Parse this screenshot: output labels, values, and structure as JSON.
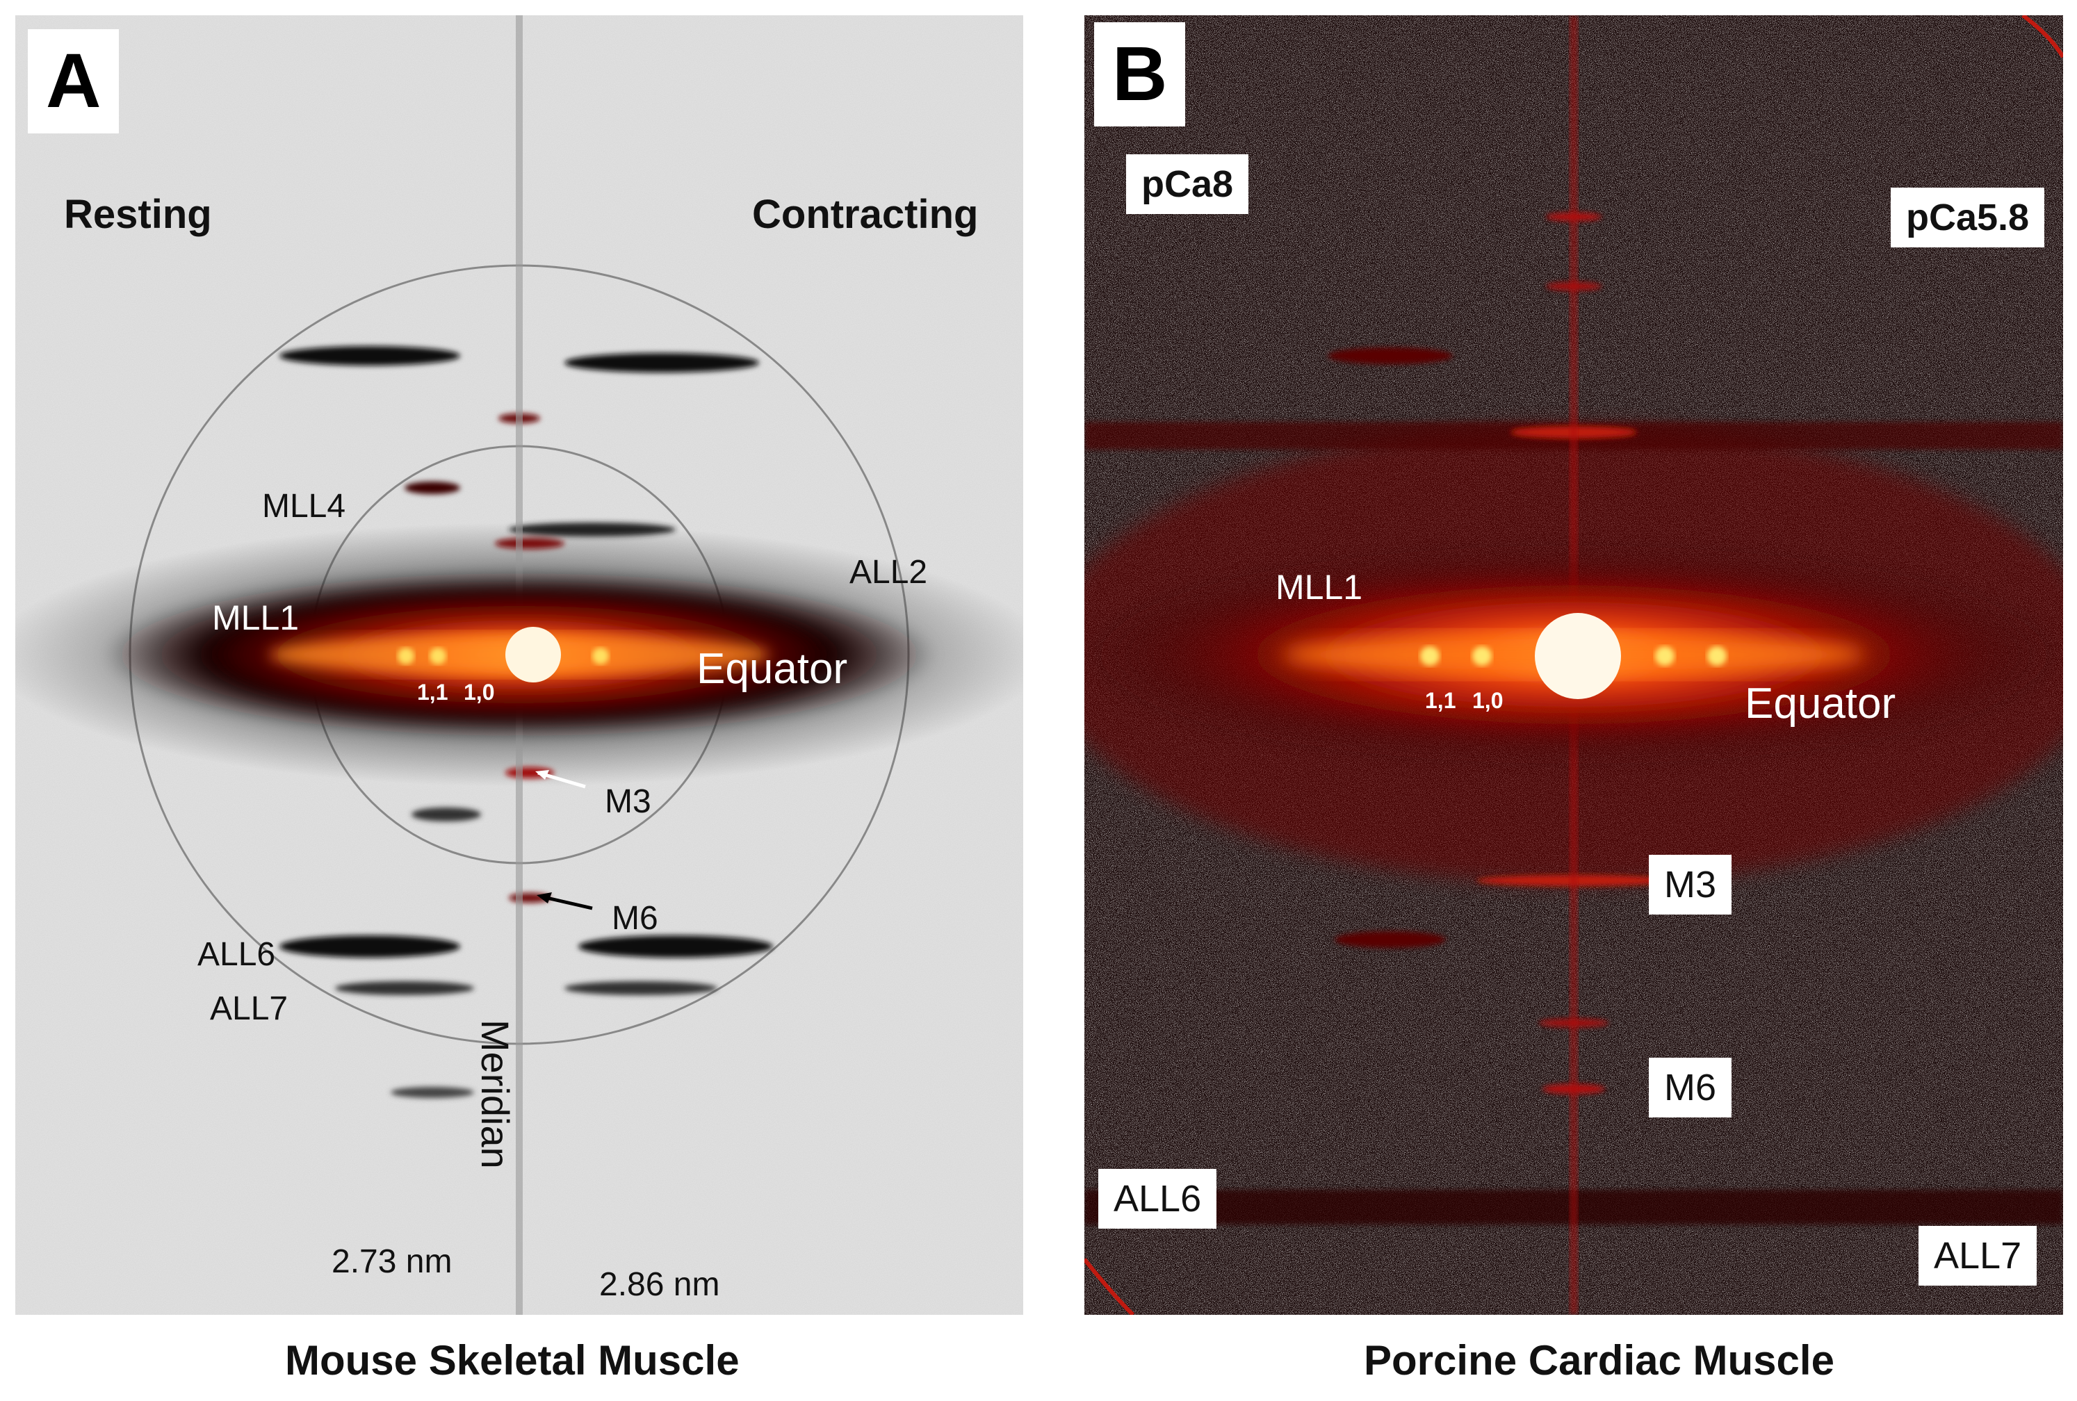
{
  "panel_a": {
    "letter": "A",
    "label_left": "Resting",
    "label_right": "Contracting",
    "reflections": {
      "mll4": "MLL4",
      "mll1": "MLL1",
      "all2": "ALL2",
      "equator": "Equator",
      "r11": "1,1",
      "r10": "1,0",
      "m3": "M3",
      "m6": "M6",
      "all6": "ALL6",
      "all7": "ALL7",
      "meridian": "Meridian"
    },
    "spacing_left": "2.73 nm",
    "spacing_right": "2.86 nm",
    "caption": "Mouse Skeletal Muscle"
  },
  "panel_b": {
    "letter": "B",
    "label_left": "pCa8",
    "label_right": "pCa5.8",
    "reflections": {
      "mll1": "MLL1",
      "equator": "Equator",
      "r11": "1,1",
      "r10": "1,0",
      "m3": "M3",
      "m6": "M6",
      "all6": "ALL6",
      "all7": "ALL7"
    },
    "caption": "Porcine Cardiac Muscle"
  },
  "colors": {
    "panel_a_background": "#e6e6e6",
    "panel_b_background": "#1a0505",
    "reflection_red": "#b0100a",
    "beam_core": "#fff3c0"
  }
}
